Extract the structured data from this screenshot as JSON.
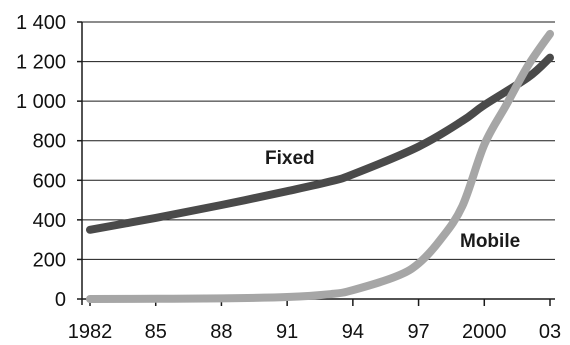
{
  "chart_data": {
    "type": "line",
    "title": "",
    "xlabel": "",
    "ylabel": "",
    "ylim": [
      0,
      1400
    ],
    "xlim": [
      1982,
      2003
    ],
    "grid": "horizontal",
    "legend": "inline labels",
    "y_ticks": [
      {
        "value": 0,
        "label": "0"
      },
      {
        "value": 200,
        "label": "200"
      },
      {
        "value": 400,
        "label": "400"
      },
      {
        "value": 600,
        "label": "600"
      },
      {
        "value": 800,
        "label": "800"
      },
      {
        "value": 1000,
        "label": "1 000"
      },
      {
        "value": 1200,
        "label": "1 200"
      },
      {
        "value": 1400,
        "label": "1 400"
      }
    ],
    "x_ticks": [
      {
        "value": 1982,
        "label": "1982"
      },
      {
        "value": 1985,
        "label": "85"
      },
      {
        "value": 1988,
        "label": "88"
      },
      {
        "value": 1991,
        "label": "91"
      },
      {
        "value": 1994,
        "label": "94"
      },
      {
        "value": 1997,
        "label": "97"
      },
      {
        "value": 2000,
        "label": "2000"
      },
      {
        "value": 2003,
        "label": "03"
      }
    ],
    "series": [
      {
        "name": "Fixed",
        "color": "#4a4a4a",
        "x": [
          1982,
          1985,
          1988,
          1991,
          1993,
          1994,
          1997,
          1999,
          2000,
          2002,
          2003
        ],
        "y": [
          350,
          410,
          475,
          545,
          595,
          630,
          770,
          900,
          980,
          1120,
          1220
        ]
      },
      {
        "name": "Mobile",
        "color": "#a6a6a6",
        "x": [
          1982,
          1985,
          1988,
          1991,
          1993,
          1994,
          1996,
          1997,
          1998,
          1999,
          2000,
          2001,
          2002,
          2003
        ],
        "y": [
          0,
          1,
          3,
          10,
          25,
          45,
          115,
          180,
          300,
          470,
          780,
          980,
          1180,
          1340
        ]
      }
    ]
  }
}
